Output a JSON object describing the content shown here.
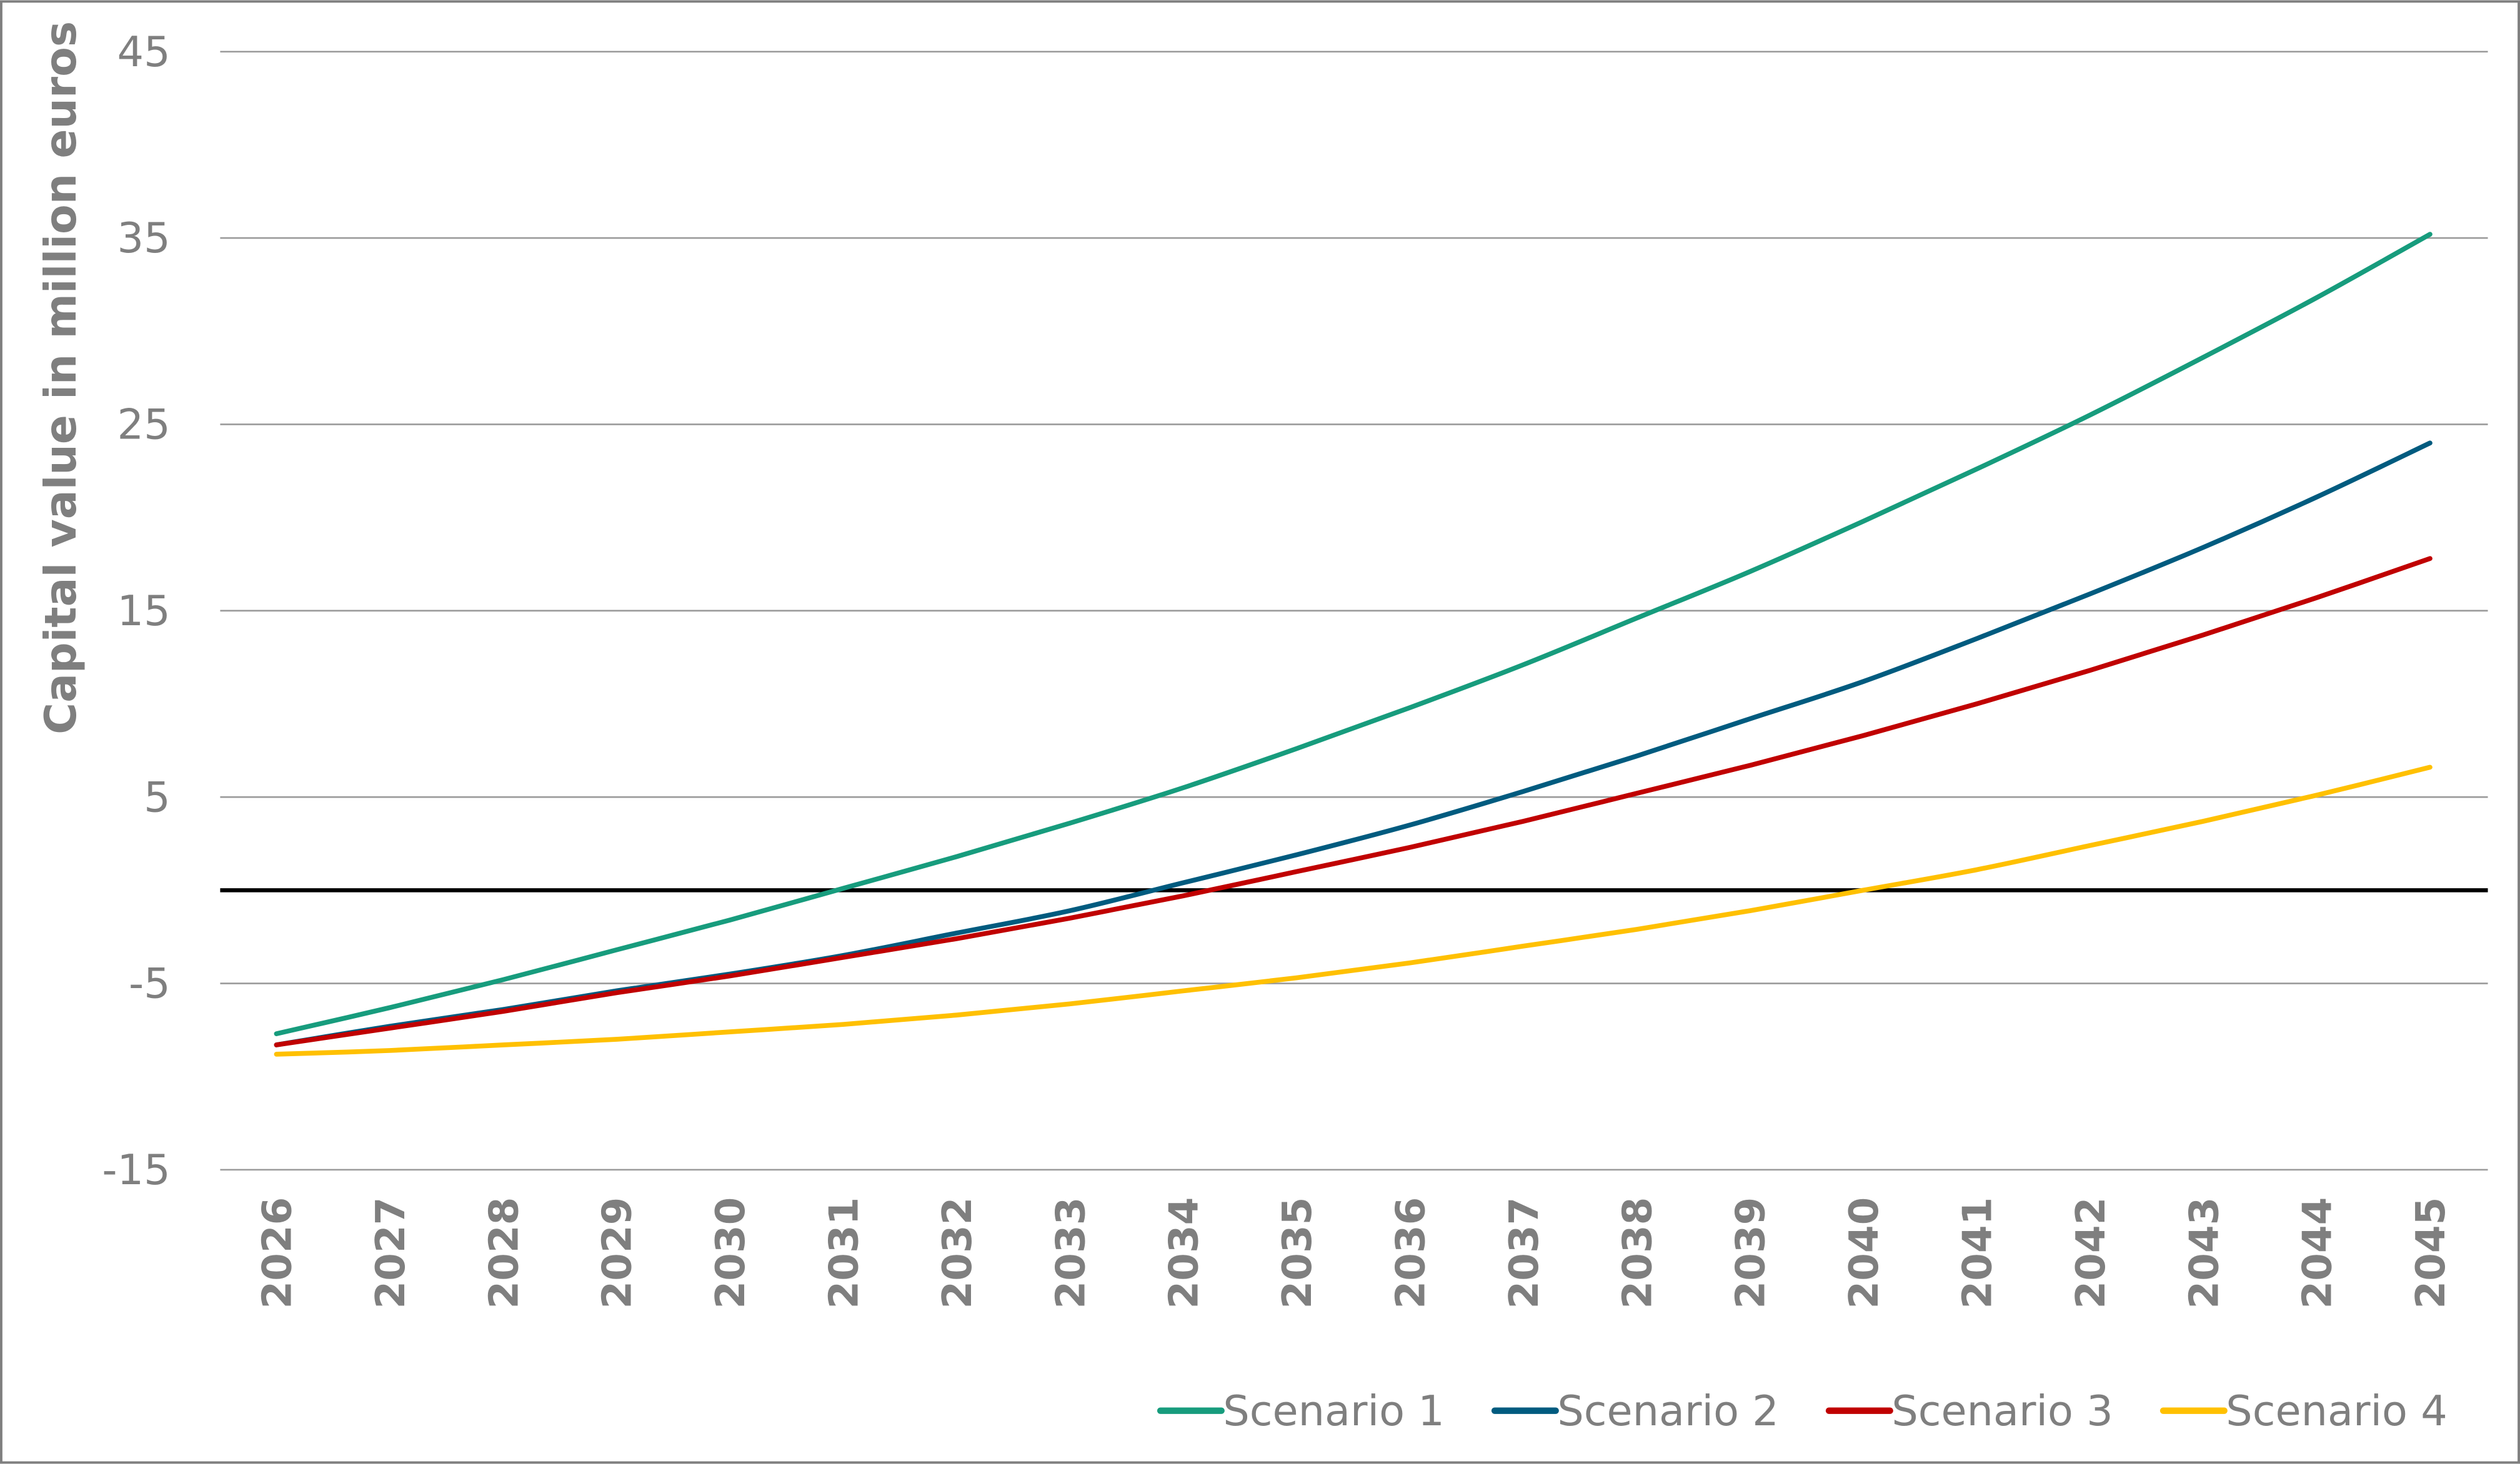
{
  "chart_data": {
    "type": "line",
    "title": "",
    "xlabel": "",
    "ylabel": "Capital value in million euros",
    "ylim": [
      -15,
      45
    ],
    "yticks": [
      -15,
      -5,
      5,
      15,
      25,
      35,
      45
    ],
    "zero_line": true,
    "grid": "horizontal",
    "legend": "bottom-right",
    "x": [
      "2026",
      "2027",
      "2028",
      "2029",
      "2030",
      "2031",
      "2032",
      "2033",
      "2034",
      "2035",
      "2036",
      "2037",
      "2038",
      "2039",
      "2040",
      "2041",
      "2042",
      "2043",
      "2044",
      "2045"
    ],
    "series": [
      {
        "name": "Scenario 1",
        "color": "#179C7D",
        "values": [
          -7.7,
          -6.3,
          -4.8,
          -3.2,
          -1.6,
          0.1,
          1.8,
          3.6,
          5.5,
          7.6,
          9.8,
          12.1,
          14.6,
          17.1,
          19.8,
          22.6,
          25.5,
          28.6,
          31.8,
          35.2
        ]
      },
      {
        "name": "Scenario 2",
        "color": "#005B7F",
        "values": [
          -8.3,
          -7.3,
          -6.4,
          -5.4,
          -4.5,
          -3.5,
          -2.3,
          -1.1,
          0.4,
          1.9,
          3.5,
          5.3,
          7.2,
          9.2,
          11.2,
          13.5,
          15.9,
          18.4,
          21.1,
          24.0
        ]
      },
      {
        "name": "Scenario 3",
        "color": "#C00000",
        "values": [
          -8.3,
          -7.4,
          -6.5,
          -5.5,
          -4.6,
          -3.6,
          -2.6,
          -1.5,
          -0.3,
          1.0,
          2.3,
          3.7,
          5.2,
          6.7,
          8.3,
          10.0,
          11.8,
          13.7,
          15.7,
          17.8
        ]
      },
      {
        "name": "Scenario 4",
        "color": "#FFC000",
        "values": [
          -8.8,
          -8.6,
          -8.3,
          -8.0,
          -7.6,
          -7.2,
          -6.7,
          -6.1,
          -5.4,
          -4.7,
          -3.9,
          -3.0,
          -2.1,
          -1.1,
          0.0,
          1.1,
          2.4,
          3.7,
          5.1,
          6.6
        ]
      }
    ]
  }
}
